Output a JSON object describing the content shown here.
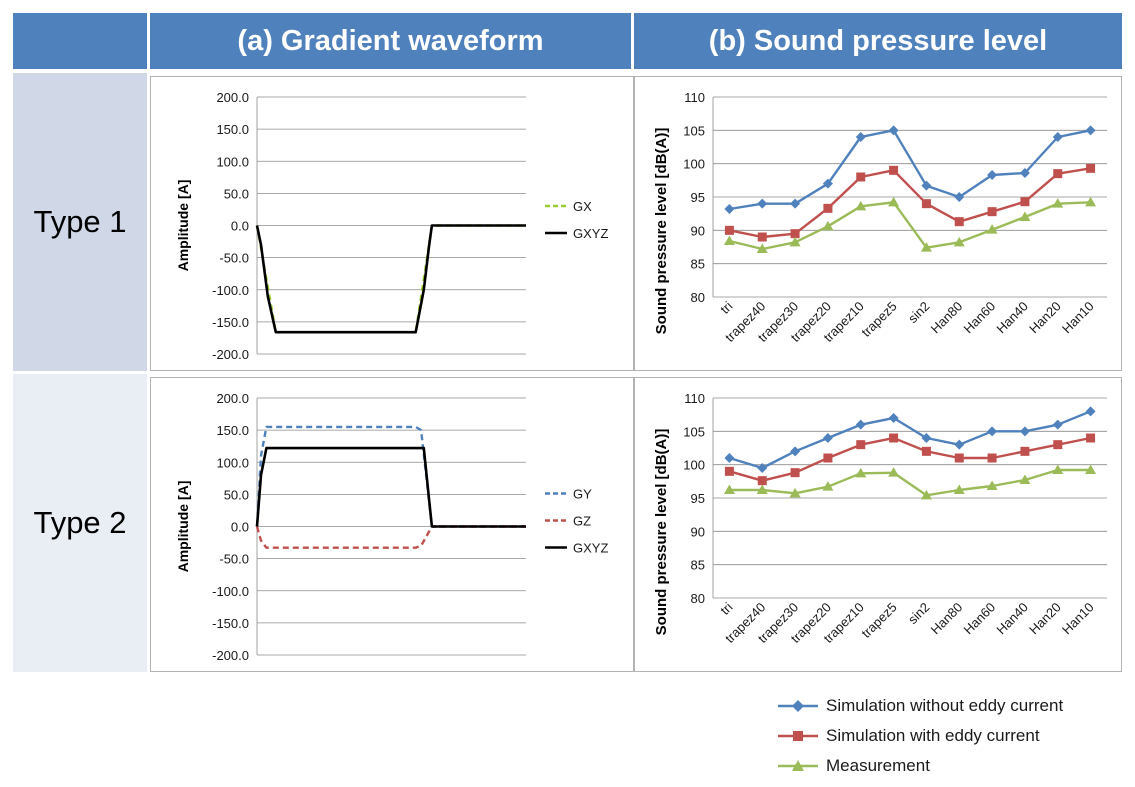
{
  "headers": {
    "corner": "",
    "col_a": "(a) Gradient waveform",
    "col_b": "(b) Sound pressure level"
  },
  "rows": [
    {
      "label": "Type 1"
    },
    {
      "label": "Type 2"
    }
  ],
  "colors": {
    "header_bg": "#4f81bd",
    "row1_bg": "#d0d8e8",
    "row2_bg": "#e9edf4",
    "gx": "#9acd32",
    "gy": "#4f81bd",
    "gz": "#c0504d",
    "gxyz": "#000000",
    "sim_without": "#4f81bd",
    "sim_with": "#c0504d",
    "measurement": "#9bbb59"
  },
  "legend": {
    "sim_without": "Simulation without eddy current",
    "sim_with": "Simulation with eddy current",
    "measurement": "Measurement"
  },
  "chart_data": [
    {
      "type": "line",
      "panel": "type1-waveform",
      "ylabel": "Amplitude [A]",
      "ylim": [
        -200,
        200
      ],
      "yticks": [
        200,
        150,
        100,
        50,
        0,
        -50,
        -100,
        -150,
        -200
      ],
      "ytick_labels": [
        "200.0",
        "150.0",
        "100.0",
        "50.0",
        "0.0",
        "-50.0",
        "-100.0",
        "-150.0",
        "-200.0"
      ],
      "xlim": [
        0,
        100
      ],
      "grid": true,
      "legend_position": "right",
      "series": [
        {
          "name": "GX",
          "style": "dashed",
          "x": [
            0,
            7,
            59,
            65,
            100
          ],
          "y": [
            0,
            -166,
            -166,
            0,
            0
          ]
        },
        {
          "name": "GXYZ",
          "style": "solid",
          "x": [
            0,
            1.5,
            4,
            7,
            59,
            62,
            64,
            65,
            100
          ],
          "y": [
            0,
            -30,
            -110,
            -166,
            -166,
            -100,
            -30,
            0,
            0
          ]
        }
      ]
    },
    {
      "type": "line",
      "panel": "type1-spl",
      "ylabel": "Sound pressure level [dB(A)]",
      "ylim": [
        80,
        110
      ],
      "yticks": [
        80,
        85,
        90,
        95,
        100,
        105,
        110
      ],
      "categories": [
        "tri",
        "trapez40",
        "trapez30",
        "trapez20",
        "trapez10",
        "trapez5",
        "sin2",
        "Han80",
        "Han60",
        "Han40",
        "Han20",
        "Han10"
      ],
      "grid": true,
      "series": [
        {
          "name": "Simulation without eddy current",
          "values": [
            93.2,
            94.0,
            94.0,
            97.0,
            104.0,
            105.0,
            96.7,
            95.0,
            98.3,
            98.6,
            104.0,
            105.0
          ]
        },
        {
          "name": "Simulation with eddy current",
          "values": [
            90.0,
            89.0,
            89.5,
            93.3,
            98.0,
            99.0,
            94.0,
            91.3,
            92.8,
            94.3,
            98.5,
            99.3
          ]
        },
        {
          "name": "Measurement",
          "values": [
            88.4,
            87.2,
            88.2,
            90.6,
            93.6,
            94.2,
            87.4,
            88.2,
            90.1,
            92.0,
            94.0,
            94.2
          ]
        }
      ]
    },
    {
      "type": "line",
      "panel": "type2-waveform",
      "ylabel": "Amplitude [A]",
      "ylim": [
        -200,
        200
      ],
      "yticks": [
        200,
        150,
        100,
        50,
        0,
        -50,
        -100,
        -150,
        -200
      ],
      "ytick_labels": [
        "200.0",
        "150.0",
        "100.0",
        "50.0",
        "0.0",
        "-50.0",
        "-100.0",
        "-150.0",
        "-200.0"
      ],
      "xlim": [
        0,
        100
      ],
      "grid": true,
      "legend_position": "right",
      "series": [
        {
          "name": "GY",
          "style": "dashed",
          "x": [
            0,
            1.5,
            3.5,
            59,
            61,
            65,
            100
          ],
          "y": [
            0,
            110,
            155,
            155,
            150,
            0,
            0
          ]
        },
        {
          "name": "GZ",
          "style": "dashed",
          "x": [
            0,
            1.5,
            3.5,
            59,
            61,
            65,
            100
          ],
          "y": [
            0,
            -22,
            -33,
            -33,
            -30,
            0,
            0
          ]
        },
        {
          "name": "GXYZ",
          "style": "solid",
          "x": [
            0,
            1.5,
            3.5,
            62,
            64,
            65,
            100
          ],
          "y": [
            0,
            80,
            122,
            122,
            40,
            0,
            0
          ]
        }
      ]
    },
    {
      "type": "line",
      "panel": "type2-spl",
      "ylabel": "Sound pressure level [dB(A)]",
      "ylim": [
        80,
        110
      ],
      "yticks": [
        80,
        85,
        90,
        95,
        100,
        105,
        110
      ],
      "categories": [
        "tri",
        "trapez40",
        "trapez30",
        "trapez20",
        "trapez10",
        "trapez5",
        "sin2",
        "Han80",
        "Han60",
        "Han40",
        "Han20",
        "Han10"
      ],
      "grid": true,
      "series": [
        {
          "name": "Simulation without eddy current",
          "values": [
            101.0,
            99.5,
            102.0,
            104.0,
            106.0,
            107.0,
            104.0,
            103.0,
            105.0,
            105.0,
            106.0,
            108.0
          ]
        },
        {
          "name": "Simulation with eddy current",
          "values": [
            99.0,
            97.6,
            98.8,
            101.0,
            103.0,
            104.0,
            102.0,
            101.0,
            101.0,
            102.0,
            103.0,
            104.0
          ]
        },
        {
          "name": "Measurement",
          "values": [
            96.2,
            96.2,
            95.7,
            96.7,
            98.7,
            98.8,
            95.4,
            96.2,
            96.8,
            97.7,
            99.2,
            99.2
          ]
        }
      ]
    }
  ]
}
